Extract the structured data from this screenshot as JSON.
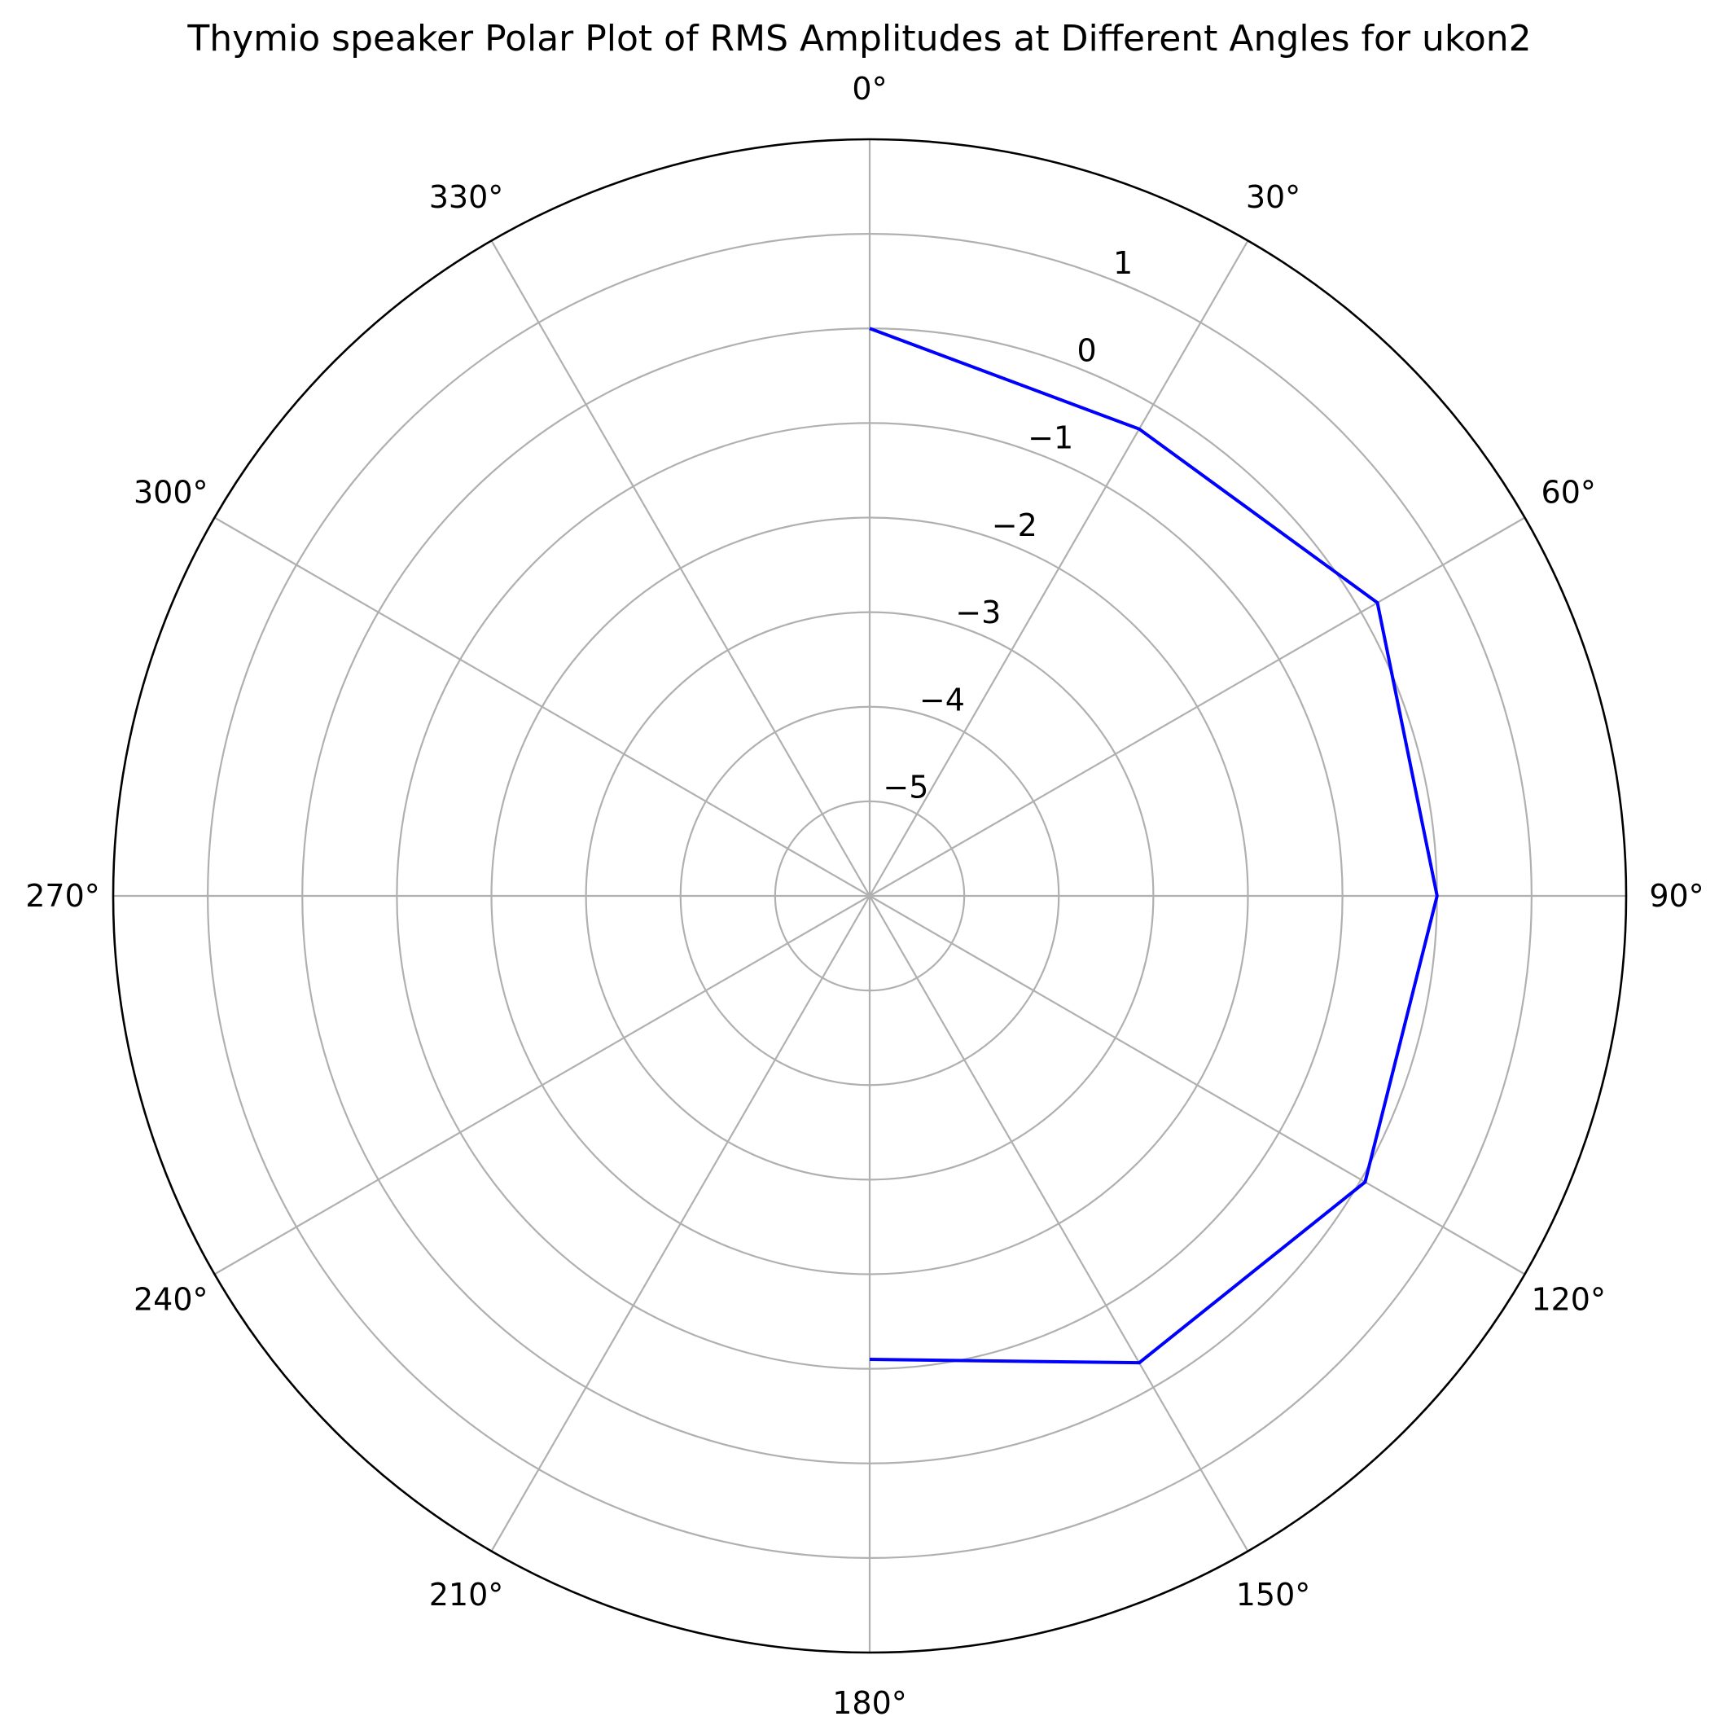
{
  "chart_data": {
    "type": "line",
    "projection": "polar",
    "title": "Thymio speaker Polar Plot of RMS Amplitudes at Different Angles for ukon2",
    "theta_direction": "clockwise",
    "theta_zero": "top",
    "theta_ticks_deg": [
      0,
      30,
      60,
      90,
      120,
      150,
      180,
      210,
      240,
      270,
      300,
      330
    ],
    "theta_tick_labels": [
      "0°",
      "30°",
      "60°",
      "90°",
      "120°",
      "150°",
      "180°",
      "210°",
      "240°",
      "270°",
      "300°",
      "330°"
    ],
    "r_ticks": [
      -5,
      -4,
      -3,
      -2,
      -1,
      0,
      1
    ],
    "r_tick_labels": [
      "−5",
      "−4",
      "−3",
      "−2",
      "−1",
      "0",
      "1"
    ],
    "r_label_angle_deg": 22.5,
    "rlim": [
      -6,
      2
    ],
    "grid": true,
    "series": [
      {
        "color": "#0000ff",
        "theta_deg": [
          0,
          30,
          60,
          90,
          120,
          150,
          180
        ],
        "r": [
          0.0,
          -0.3,
          0.2,
          0.0,
          0.05,
          -0.3,
          -1.1
        ]
      }
    ]
  }
}
